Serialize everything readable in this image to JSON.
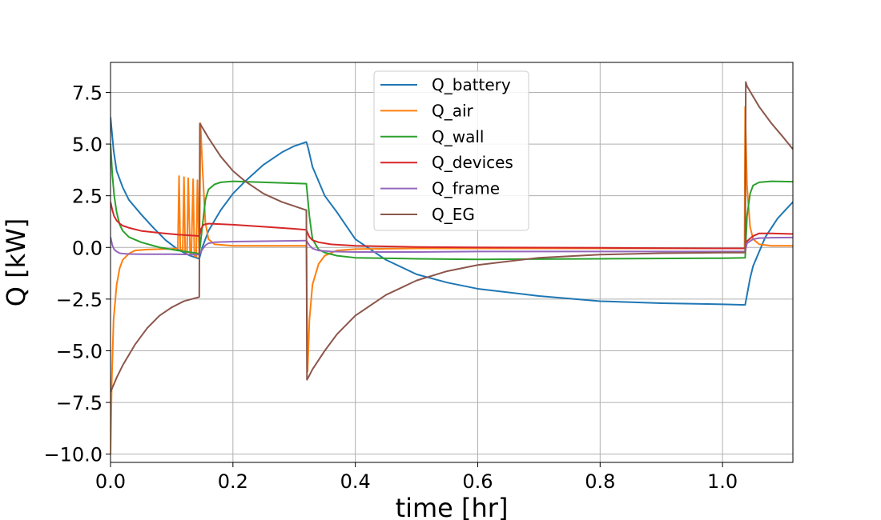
{
  "chart_data": {
    "type": "line",
    "title": "",
    "xlabel": "time [hr]",
    "ylabel": "Q [kW]",
    "xlim": [
      0.0,
      1.115
    ],
    "ylim": [
      -10.4,
      8.95
    ],
    "xticks": [
      0.0,
      0.2,
      0.4,
      0.6,
      0.8,
      1.0
    ],
    "xtick_labels": [
      "0.0",
      "0.2",
      "0.4",
      "0.6",
      "0.8",
      "1.0"
    ],
    "yticks": [
      -10.0,
      -7.5,
      -5.0,
      -2.5,
      0.0,
      2.5,
      5.0,
      7.5
    ],
    "ytick_labels": [
      "−10.0",
      "−7.5",
      "−5.0",
      "−2.5",
      "0.0",
      "2.5",
      "5.0",
      "7.5"
    ],
    "grid": true,
    "legend_position": "top-center",
    "series": [
      {
        "name": "Q_battery",
        "color": "#1f77b4",
        "x": [
          0.0,
          0.005,
          0.01,
          0.02,
          0.03,
          0.05,
          0.07,
          0.09,
          0.11,
          0.13,
          0.145,
          0.15,
          0.16,
          0.18,
          0.2,
          0.22,
          0.25,
          0.28,
          0.3,
          0.32,
          0.323,
          0.33,
          0.35,
          0.37,
          0.4,
          0.45,
          0.5,
          0.55,
          0.6,
          0.7,
          0.8,
          0.9,
          1.0,
          1.037,
          1.04,
          1.045,
          1.05,
          1.06,
          1.07,
          1.09,
          1.115
        ],
        "y": [
          6.3,
          4.7,
          3.7,
          2.9,
          2.3,
          1.6,
          0.95,
          0.35,
          -0.1,
          -0.4,
          -0.55,
          0.0,
          0.8,
          1.8,
          2.6,
          3.2,
          4.0,
          4.6,
          4.9,
          5.1,
          4.8,
          3.9,
          2.5,
          1.7,
          0.4,
          -0.6,
          -1.3,
          -1.7,
          -2.0,
          -2.35,
          -2.6,
          -2.7,
          -2.75,
          -2.78,
          -2.3,
          -1.5,
          -0.9,
          -0.2,
          0.5,
          1.4,
          2.2
        ]
      },
      {
        "name": "Q_air",
        "color": "#ff7f0e",
        "x": [
          0.0,
          0.002,
          0.005,
          0.01,
          0.015,
          0.02,
          0.03,
          0.04,
          0.06,
          0.08,
          0.1,
          0.11,
          0.112,
          0.114,
          0.118,
          0.12,
          0.122,
          0.125,
          0.127,
          0.13,
          0.132,
          0.135,
          0.137,
          0.14,
          0.142,
          0.145,
          0.147,
          0.15,
          0.155,
          0.16,
          0.17,
          0.2,
          0.25,
          0.3,
          0.32,
          0.322,
          0.325,
          0.33,
          0.34,
          0.35,
          0.37,
          0.4,
          0.5,
          0.6,
          0.8,
          1.0,
          1.036,
          1.037,
          1.04,
          1.045,
          1.05,
          1.06,
          1.08,
          1.115
        ],
        "y": [
          -10.0,
          -6.5,
          -3.5,
          -1.8,
          -1.0,
          -0.6,
          -0.3,
          -0.15,
          -0.1,
          -0.08,
          -0.07,
          -0.05,
          3.45,
          -0.1,
          -0.15,
          3.4,
          -0.2,
          -0.25,
          3.35,
          -0.3,
          -0.35,
          3.3,
          -0.4,
          -0.45,
          3.25,
          -0.5,
          6.0,
          4.0,
          1.2,
          0.4,
          0.15,
          0.08,
          0.08,
          0.08,
          0.08,
          -6.0,
          -3.5,
          -1.8,
          -0.8,
          -0.4,
          -0.15,
          -0.08,
          -0.05,
          -0.05,
          -0.05,
          -0.05,
          -0.05,
          6.8,
          3.0,
          1.0,
          0.4,
          0.15,
          0.08,
          0.08
        ]
      },
      {
        "name": "Q_wall",
        "color": "#2ca02c",
        "x": [
          0.0,
          0.003,
          0.006,
          0.01,
          0.015,
          0.02,
          0.03,
          0.05,
          0.08,
          0.11,
          0.145,
          0.15,
          0.155,
          0.16,
          0.17,
          0.18,
          0.2,
          0.25,
          0.3,
          0.32,
          0.325,
          0.33,
          0.34,
          0.35,
          0.37,
          0.4,
          0.5,
          0.6,
          0.8,
          1.0,
          1.037,
          1.04,
          1.045,
          1.05,
          1.06,
          1.08,
          1.115
        ],
        "y": [
          5.0,
          3.5,
          2.5,
          1.7,
          1.1,
          0.8,
          0.5,
          0.25,
          0.0,
          -0.15,
          -0.3,
          1.0,
          2.3,
          2.8,
          3.05,
          3.15,
          3.2,
          3.15,
          3.1,
          3.08,
          1.5,
          0.4,
          -0.1,
          -0.25,
          -0.4,
          -0.5,
          -0.55,
          -0.58,
          -0.55,
          -0.52,
          -0.5,
          1.5,
          2.6,
          3.0,
          3.15,
          3.2,
          3.18
        ]
      },
      {
        "name": "Q_devices",
        "color": "#d62728",
        "x": [
          0.0,
          0.003,
          0.006,
          0.01,
          0.015,
          0.02,
          0.03,
          0.05,
          0.08,
          0.11,
          0.145,
          0.148,
          0.152,
          0.16,
          0.2,
          0.25,
          0.3,
          0.32,
          0.325,
          0.33,
          0.34,
          0.36,
          0.4,
          0.5,
          0.6,
          0.8,
          1.0,
          1.037,
          1.04,
          1.05,
          1.06,
          1.08,
          1.115
        ],
        "y": [
          2.2,
          1.8,
          1.5,
          1.3,
          1.15,
          1.05,
          0.95,
          0.8,
          0.7,
          0.62,
          0.55,
          0.9,
          1.1,
          1.15,
          1.1,
          1.0,
          0.9,
          0.85,
          0.5,
          0.35,
          0.25,
          0.15,
          0.08,
          0.02,
          0.0,
          -0.02,
          -0.05,
          -0.05,
          0.3,
          0.55,
          0.68,
          0.68,
          0.65
        ]
      },
      {
        "name": "Q_frame",
        "color": "#9467bd",
        "x": [
          0.0,
          0.003,
          0.006,
          0.01,
          0.015,
          0.02,
          0.03,
          0.05,
          0.1,
          0.145,
          0.15,
          0.155,
          0.16,
          0.17,
          0.2,
          0.25,
          0.3,
          0.32,
          0.325,
          0.33,
          0.34,
          0.36,
          0.4,
          0.5,
          0.6,
          0.8,
          1.0,
          1.037,
          1.04,
          1.05,
          1.06,
          1.08,
          1.115
        ],
        "y": [
          0.5,
          0.1,
          -0.1,
          -0.2,
          -0.28,
          -0.3,
          -0.32,
          -0.33,
          -0.33,
          -0.35,
          -0.1,
          0.1,
          0.2,
          0.25,
          0.28,
          0.3,
          0.32,
          0.33,
          0.1,
          -0.05,
          -0.15,
          -0.2,
          -0.22,
          -0.22,
          -0.2,
          -0.2,
          -0.2,
          -0.2,
          0.2,
          0.4,
          0.45,
          0.47,
          0.48
        ]
      },
      {
        "name": "Q_EG",
        "color": "#8c564b",
        "x": [
          0.0,
          0.01,
          0.02,
          0.04,
          0.06,
          0.08,
          0.1,
          0.12,
          0.145,
          0.146,
          0.15,
          0.16,
          0.18,
          0.2,
          0.22,
          0.25,
          0.28,
          0.3,
          0.32,
          0.321,
          0.323,
          0.33,
          0.35,
          0.37,
          0.4,
          0.45,
          0.5,
          0.55,
          0.6,
          0.7,
          0.8,
          0.9,
          1.0,
          1.037,
          1.038,
          1.04,
          1.06,
          1.08,
          1.1,
          1.115
        ],
        "y": [
          -7.0,
          -6.3,
          -5.7,
          -4.7,
          -3.9,
          -3.3,
          -2.9,
          -2.6,
          -2.4,
          6.0,
          5.8,
          5.3,
          4.4,
          3.7,
          3.2,
          2.6,
          2.2,
          2.0,
          1.8,
          -6.4,
          -6.3,
          -5.9,
          -5.0,
          -4.2,
          -3.3,
          -2.3,
          -1.6,
          -1.15,
          -0.85,
          -0.5,
          -0.35,
          -0.28,
          -0.25,
          -0.25,
          8.0,
          7.8,
          6.8,
          6.0,
          5.3,
          4.75
        ]
      }
    ]
  }
}
